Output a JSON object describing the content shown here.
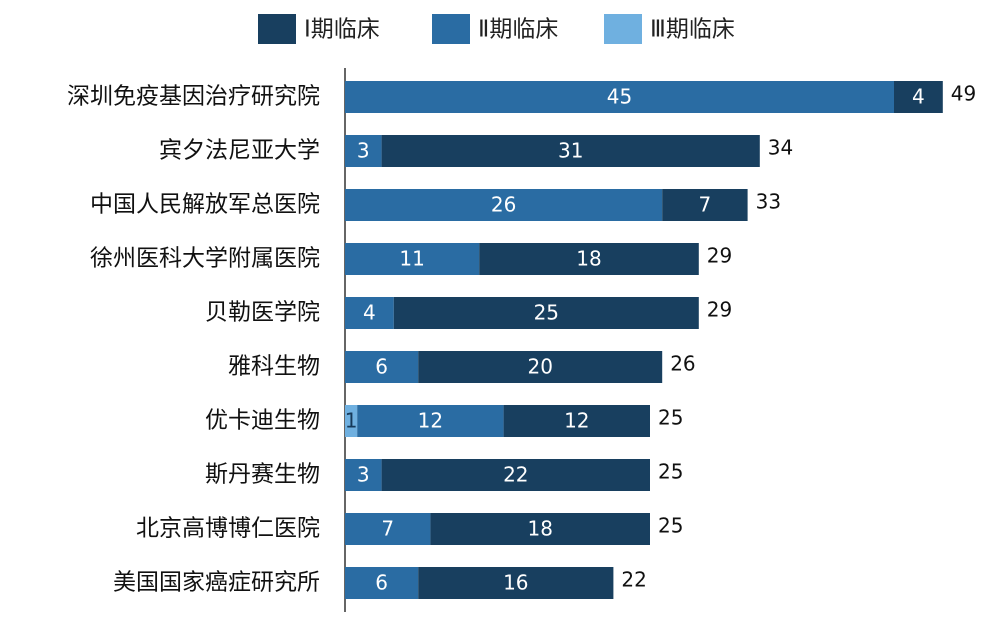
{
  "chart_data": {
    "type": "stacked-bar-horizontal",
    "categories": [
      "深圳免疫基因治疗研究院",
      "宾夕法尼亚大学",
      "中国人民解放军总医院",
      "徐州医科大学附属医院",
      "贝勒医学院",
      "雅科生物",
      "优卡迪生物",
      "斯丹赛生物",
      "北京高博博仁医院",
      "美国国家癌症研究所"
    ],
    "series": [
      {
        "name": "Ⅲ期临床",
        "color": "#6fb0e0",
        "values": [
          null,
          null,
          null,
          null,
          null,
          null,
          1,
          null,
          null,
          null
        ]
      },
      {
        "name": "Ⅱ期临床",
        "color": "#2a6ca3",
        "values": [
          45,
          3,
          26,
          11,
          4,
          6,
          12,
          3,
          7,
          6
        ]
      },
      {
        "name": "Ⅰ期临床",
        "color": "#183f5f",
        "values": [
          4,
          31,
          7,
          18,
          25,
          20,
          12,
          22,
          18,
          16
        ]
      }
    ],
    "legend_order": [
      2,
      1,
      0
    ],
    "totals": [
      49,
      34,
      33,
      29,
      29,
      26,
      25,
      25,
      25,
      22
    ],
    "xlim": [
      0,
      50
    ]
  }
}
